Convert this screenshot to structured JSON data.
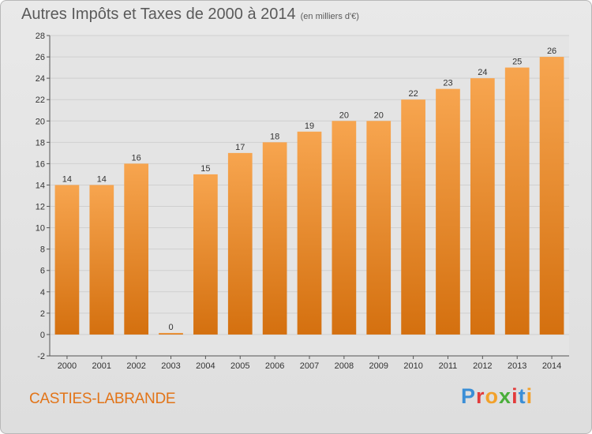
{
  "header": {
    "title": "Autres Impôts et Taxes de 2000 à 2014",
    "subtitle": "(en milliers d'€)"
  },
  "footer": {
    "town": "CASTIES-LABRANDE",
    "logo": "Proxiti"
  },
  "colors": {
    "bar_top": "#f7a54f",
    "bar_bottom": "#d4700f",
    "grid": "#cfcfcf",
    "town": "#e27418"
  },
  "chart_data": {
    "type": "bar",
    "title": "Autres Impôts et Taxes de 2000 à 2014",
    "subtitle": "(en milliers d'€)",
    "categories": [
      "2000",
      "2001",
      "2002",
      "2003",
      "2004",
      "2005",
      "2006",
      "2007",
      "2008",
      "2009",
      "2010",
      "2011",
      "2012",
      "2013",
      "2014"
    ],
    "values": [
      14,
      14,
      16,
      0,
      15,
      17,
      18,
      19,
      20,
      20,
      22,
      23,
      24,
      25,
      26
    ],
    "ylim": [
      -2,
      28
    ],
    "yticks": [
      -2,
      0,
      2,
      4,
      6,
      8,
      10,
      12,
      14,
      16,
      18,
      20,
      22,
      24,
      26,
      28
    ],
    "grid": true,
    "legend": "none"
  }
}
